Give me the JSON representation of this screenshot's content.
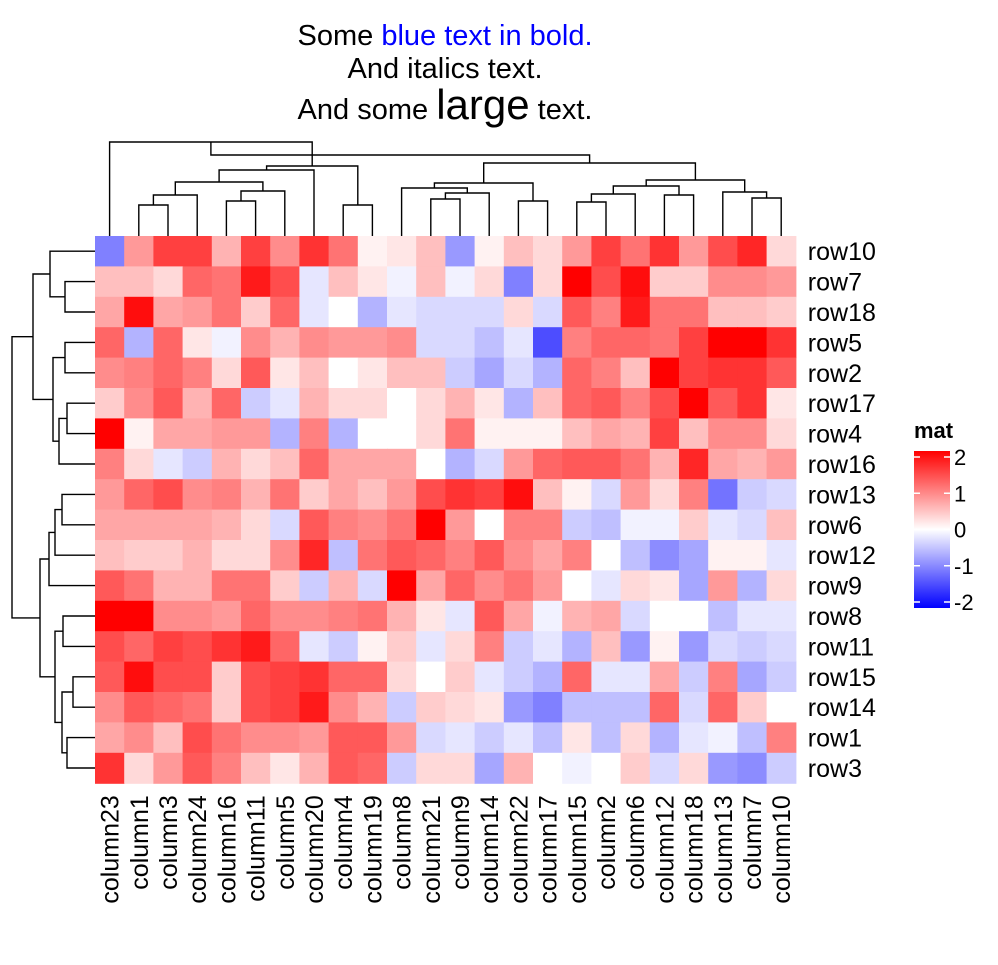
{
  "chart_data": {
    "type": "heatmap",
    "title": {
      "lines": [
        [
          {
            "text": "Some ",
            "style": "plain"
          },
          {
            "text": "blue text in bold.",
            "style": "blue"
          }
        ],
        [
          {
            "text": "And italics text.",
            "style": "plain"
          }
        ],
        [
          {
            "text": "And some ",
            "style": "plain"
          },
          {
            "text": "large",
            "style": "large"
          },
          {
            "text": " text.",
            "style": "plain"
          }
        ]
      ]
    },
    "rows": [
      "row10",
      "row7",
      "row18",
      "row5",
      "row2",
      "row17",
      "row4",
      "row16",
      "row13",
      "row6",
      "row12",
      "row9",
      "row8",
      "row11",
      "row15",
      "row14",
      "row1",
      "row3"
    ],
    "columns": [
      "column23",
      "column1",
      "column3",
      "column24",
      "column16",
      "column11",
      "column5",
      "column20",
      "column4",
      "column19",
      "column8",
      "column21",
      "column9",
      "column14",
      "column22",
      "column17",
      "column15",
      "column2",
      "column6",
      "column12",
      "column18",
      "column13",
      "column7",
      "column10"
    ],
    "values": [
      [
        -1.0,
        0.8,
        1.5,
        1.5,
        0.6,
        1.5,
        0.9,
        1.6,
        1.1,
        0.1,
        0.2,
        0.5,
        -0.8,
        0.1,
        0.5,
        0.3,
        0.8,
        1.5,
        1.1,
        1.6,
        0.8,
        1.4,
        1.7,
        0.3
      ],
      [
        0.5,
        0.5,
        0.3,
        1.2,
        1.1,
        1.8,
        1.4,
        -0.2,
        0.5,
        0.2,
        -0.1,
        0.5,
        -0.1,
        0.3,
        -1.0,
        0.3,
        2.2,
        1.4,
        1.9,
        0.4,
        0.4,
        0.9,
        0.9,
        0.8
      ],
      [
        0.7,
        1.9,
        0.7,
        0.8,
        1.1,
        0.4,
        1.2,
        -0.2,
        0.0,
        -0.6,
        -0.2,
        -0.3,
        -0.3,
        -0.3,
        0.3,
        -0.3,
        1.3,
        1.0,
        1.8,
        1.1,
        1.1,
        0.5,
        0.5,
        0.4
      ],
      [
        1.2,
        -0.6,
        1.2,
        0.2,
        -0.1,
        0.9,
        0.6,
        0.9,
        0.8,
        0.8,
        0.9,
        -0.3,
        -0.3,
        -0.5,
        -0.2,
        -1.4,
        1.0,
        1.2,
        1.2,
        1.1,
        1.5,
        2.2,
        2.2,
        1.6
      ],
      [
        0.9,
        1.0,
        1.2,
        1.0,
        0.3,
        1.3,
        0.2,
        0.5,
        0.0,
        0.2,
        0.5,
        0.5,
        -0.4,
        -0.7,
        -0.3,
        -0.6,
        1.2,
        1.0,
        0.5,
        2.1,
        1.5,
        1.6,
        1.6,
        1.3
      ],
      [
        0.4,
        0.9,
        1.3,
        0.6,
        1.2,
        -0.4,
        -0.2,
        0.6,
        0.3,
        0.3,
        0.0,
        0.3,
        0.6,
        0.2,
        -0.6,
        0.5,
        1.2,
        1.3,
        1.0,
        1.4,
        2.1,
        1.3,
        1.6,
        0.2
      ],
      [
        2.0,
        0.1,
        0.7,
        0.7,
        0.8,
        0.8,
        -0.6,
        1.0,
        -0.6,
        0.0,
        0.0,
        0.3,
        1.1,
        0.1,
        0.1,
        0.1,
        0.5,
        0.7,
        0.6,
        1.5,
        0.5,
        0.9,
        0.9,
        0.3
      ],
      [
        1.0,
        0.3,
        -0.2,
        -0.4,
        0.6,
        0.3,
        0.5,
        1.2,
        0.7,
        0.7,
        0.7,
        0.0,
        -0.6,
        -0.3,
        0.8,
        1.2,
        1.3,
        1.3,
        1.1,
        0.6,
        1.7,
        0.7,
        0.6,
        0.8
      ],
      [
        0.8,
        1.2,
        1.4,
        0.9,
        1.0,
        0.6,
        1.1,
        0.4,
        0.7,
        0.5,
        0.8,
        1.4,
        1.6,
        1.5,
        1.9,
        0.5,
        0.1,
        -0.3,
        0.8,
        0.3,
        1.0,
        -1.1,
        -0.4,
        -0.3
      ],
      [
        0.7,
        0.7,
        0.7,
        0.7,
        0.6,
        0.3,
        -0.3,
        1.3,
        1.0,
        0.9,
        1.1,
        2.0,
        0.8,
        0.0,
        1.0,
        1.0,
        -0.4,
        -0.5,
        -0.1,
        -0.1,
        0.4,
        -0.2,
        -0.3,
        0.5
      ],
      [
        0.5,
        0.4,
        0.4,
        0.6,
        0.3,
        0.3,
        0.9,
        1.7,
        -0.5,
        1.1,
        1.3,
        1.2,
        1.0,
        1.3,
        0.9,
        0.7,
        1.0,
        0.0,
        -0.5,
        -0.9,
        -0.7,
        0.1,
        0.1,
        -0.2
      ],
      [
        1.3,
        1.1,
        0.6,
        0.6,
        1.1,
        1.1,
        0.4,
        -0.4,
        0.6,
        -0.3,
        2.0,
        0.7,
        1.2,
        0.9,
        1.1,
        0.8,
        0.0,
        -0.2,
        0.3,
        0.2,
        -0.7,
        0.8,
        -0.6,
        0.3
      ],
      [
        2.0,
        2.1,
        0.9,
        0.9,
        0.8,
        1.2,
        0.9,
        0.9,
        1.0,
        1.1,
        0.6,
        0.2,
        -0.2,
        1.3,
        0.7,
        -0.1,
        0.6,
        0.7,
        -0.3,
        0.0,
        0.0,
        -0.5,
        -0.2,
        -0.2
      ],
      [
        1.4,
        1.2,
        1.5,
        1.4,
        1.6,
        1.8,
        1.2,
        -0.2,
        -0.4,
        0.1,
        0.4,
        -0.2,
        0.3,
        1.0,
        -0.4,
        -0.2,
        -0.6,
        0.5,
        -0.8,
        0.1,
        -0.8,
        -0.3,
        -0.4,
        -0.3
      ],
      [
        1.3,
        1.9,
        1.4,
        1.4,
        0.4,
        1.4,
        1.5,
        1.6,
        1.2,
        1.2,
        0.3,
        0.0,
        0.4,
        -0.2,
        -0.4,
        -0.6,
        1.2,
        -0.2,
        -0.2,
        0.7,
        -0.4,
        1.0,
        -0.7,
        -0.4
      ],
      [
        0.9,
        1.3,
        1.2,
        1.1,
        0.4,
        1.4,
        1.5,
        1.8,
        0.9,
        0.6,
        -0.4,
        0.4,
        0.3,
        0.2,
        -0.8,
        -1.0,
        -0.5,
        -0.5,
        -0.5,
        1.2,
        -0.3,
        1.2,
        0.4,
        0.0
      ],
      [
        0.7,
        0.9,
        0.5,
        1.4,
        1.1,
        0.9,
        0.9,
        0.8,
        1.3,
        1.3,
        0.8,
        -0.3,
        -0.2,
        -0.4,
        -0.2,
        -0.5,
        0.2,
        -0.5,
        0.3,
        -0.6,
        -0.2,
        -0.1,
        -0.5,
        1.0
      ],
      [
        1.6,
        0.3,
        0.8,
        1.3,
        1.0,
        0.5,
        0.2,
        0.6,
        1.3,
        1.2,
        -0.4,
        0.3,
        0.3,
        -0.7,
        0.6,
        0.0,
        -0.1,
        0.0,
        0.4,
        -0.3,
        0.3,
        -0.8,
        -0.9,
        -0.4
      ]
    ],
    "legend": {
      "title": "mat",
      "ticks": [
        2,
        1,
        0,
        -1,
        -2
      ],
      "tick_labels": [
        "2",
        "1",
        "0",
        "-1",
        "-2"
      ],
      "range": [
        -2,
        2
      ],
      "placement": "right"
    },
    "colors": {
      "low": "#0000FF",
      "mid": "#FFFFFF",
      "high": "#FF0000",
      "title_blue": "#0000FF"
    },
    "dendrograms": {
      "rows": true,
      "columns": true
    }
  }
}
